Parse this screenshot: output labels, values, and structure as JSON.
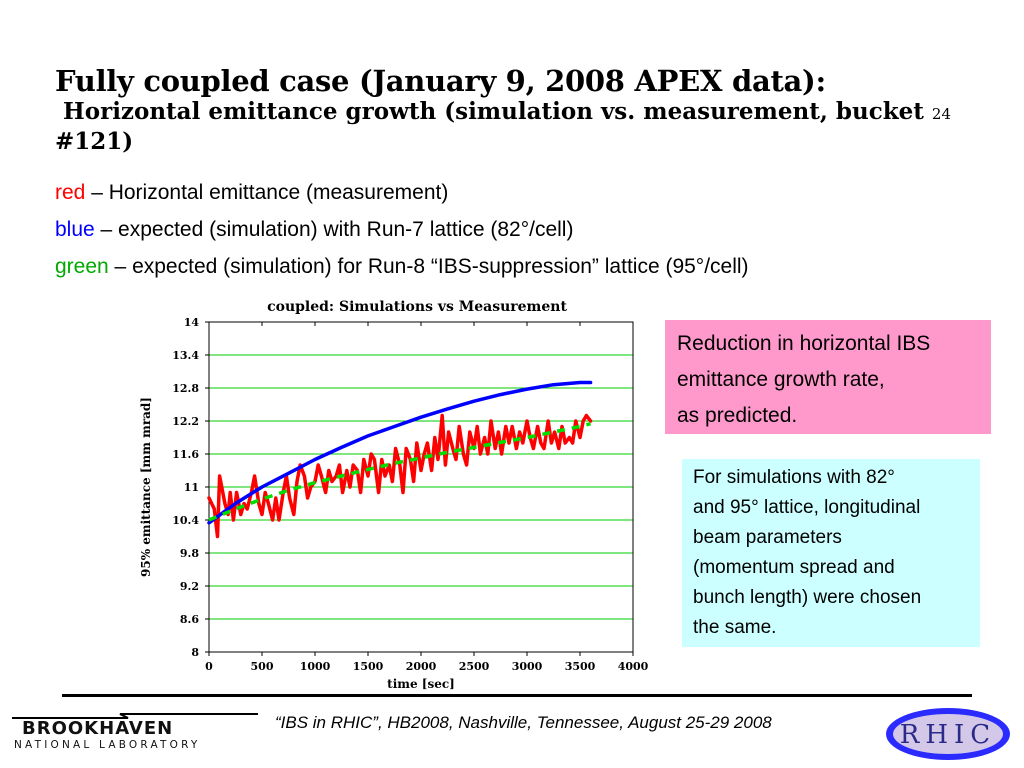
{
  "title": {
    "line1": "Fully coupled case (January 9, 2008 APEX data):",
    "line2": "Horizontal emittance growth (simulation vs. measurement, bucket",
    "page_number": "24",
    "line3": "#121)"
  },
  "legend_lines": [
    {
      "color_word": "red",
      "text": " – Horizontal emittance (measurement)",
      "color": "#ff0000"
    },
    {
      "color_word": "blue",
      "text": " – expected (simulation) with Run-7 lattice (82°/cell)",
      "color": "#0000ff"
    },
    {
      "color_word": "green",
      "text": " – expected (simulation) for Run-8 “IBS-suppression” lattice (95°/cell)",
      "color": "#00aa00"
    }
  ],
  "notes": {
    "pink_box": [
      "Reduction in horizontal IBS",
      "emittance growth rate,",
      "as predicted."
    ],
    "cyan_box": [
      "For simulations with 82°",
      "and 95° lattice, longitudinal",
      "beam parameters",
      "(momentum spread and",
      "bunch length) were chosen",
      "the same."
    ]
  },
  "footer": {
    "text": "“IBS in RHIC”, HB2008, Nashville, Tennessee, August 25-29  2008",
    "logo_left_top": "BROOKHAVEN",
    "logo_left_bottom": "NATIONAL LABORATORY",
    "logo_right": "RHIC"
  },
  "colors": {
    "measurement": "#ff0000",
    "run7_sim": "#0000ff",
    "run8_sim": "#00dd00",
    "gridlines": "#00cc00",
    "pink_box": "#ff99cc",
    "cyan_box": "#ccffff"
  },
  "chart_data": {
    "type": "line",
    "title": "coupled: Simulations vs Measurement",
    "xlabel": "time [sec]",
    "ylabel": "95% emittance [mm mrad]",
    "xlim": [
      0,
      4000
    ],
    "ylim": [
      8,
      14
    ],
    "xticks": [
      "0",
      "500",
      "1000",
      "1500",
      "2000",
      "2500",
      "3000",
      "3500",
      "4000"
    ],
    "yticks": [
      "8",
      "8.6",
      "9.2",
      "9.8",
      "10.4",
      "11",
      "11.6",
      "12.2",
      "12.8",
      "13.4",
      "14"
    ],
    "grid": "horizontal",
    "series": [
      {
        "name": "red",
        "style": "solid",
        "x": [
          0,
          50,
          80,
          100,
          150,
          180,
          200,
          230,
          260,
          300,
          330,
          360,
          400,
          430,
          470,
          500,
          530,
          560,
          600,
          630,
          660,
          700,
          730,
          760,
          800,
          830,
          860,
          900,
          930,
          960,
          1000,
          1030,
          1060,
          1100,
          1130,
          1160,
          1200,
          1230,
          1260,
          1300,
          1330,
          1360,
          1400,
          1430,
          1460,
          1500,
          1530,
          1560,
          1600,
          1630,
          1660,
          1700,
          1730,
          1760,
          1800,
          1830,
          1860,
          1900,
          1930,
          1960,
          2000,
          2030,
          2060,
          2100,
          2130,
          2160,
          2200,
          2230,
          2260,
          2300,
          2330,
          2360,
          2400,
          2430,
          2460,
          2500,
          2530,
          2560,
          2600,
          2630,
          2660,
          2700,
          2730,
          2760,
          2800,
          2830,
          2860,
          2900,
          2930,
          2960,
          3000,
          3030,
          3060,
          3100,
          3130,
          3160,
          3200,
          3230,
          3260,
          3300,
          3330,
          3360,
          3400,
          3430,
          3460,
          3500,
          3530,
          3560,
          3600
        ],
        "y": [
          10.8,
          10.6,
          10.1,
          11.2,
          10.7,
          10.5,
          10.9,
          10.4,
          10.9,
          10.5,
          10.7,
          10.6,
          10.9,
          11.2,
          10.7,
          10.5,
          10.9,
          10.7,
          10.4,
          10.8,
          10.4,
          10.9,
          11.2,
          10.8,
          10.5,
          11.1,
          11.4,
          11.2,
          10.8,
          11.0,
          11.1,
          11.4,
          11.2,
          10.9,
          11.3,
          11.1,
          11.2,
          11.4,
          10.9,
          11.3,
          11.0,
          11.4,
          11.3,
          10.9,
          11.5,
          11.2,
          11.6,
          11.5,
          10.9,
          11.5,
          11.2,
          11.4,
          11.1,
          11.7,
          11.4,
          10.9,
          11.7,
          11.5,
          11.1,
          11.8,
          11.3,
          11.6,
          11.8,
          11.3,
          11.9,
          11.5,
          12.3,
          11.4,
          12.0,
          11.7,
          11.5,
          12.1,
          11.6,
          11.4,
          12.0,
          11.7,
          12.1,
          11.6,
          11.9,
          11.6,
          12.2,
          11.7,
          12.0,
          11.6,
          12.1,
          11.8,
          12.1,
          11.7,
          12.0,
          11.8,
          12.2,
          11.9,
          11.7,
          12.1,
          11.8,
          11.7,
          12.2,
          11.8,
          12.0,
          11.7,
          12.1,
          11.8,
          11.9,
          11.8,
          12.2,
          11.9,
          12.2,
          12.3,
          12.2
        ],
        "color": "#ff0000"
      },
      {
        "name": "blue",
        "style": "solid",
        "x": [
          0,
          250,
          500,
          750,
          1000,
          1250,
          1500,
          1750,
          2000,
          2250,
          2500,
          2750,
          3000,
          3250,
          3500,
          3600
        ],
        "y": [
          10.35,
          10.7,
          11.0,
          11.25,
          11.5,
          11.72,
          11.93,
          12.1,
          12.27,
          12.42,
          12.56,
          12.68,
          12.78,
          12.86,
          12.9,
          12.9
        ],
        "color": "#0000ff"
      },
      {
        "name": "green",
        "style": "dashed",
        "x": [
          0,
          250,
          500,
          750,
          1000,
          1250,
          1500,
          1750,
          2000,
          2250,
          2500,
          2750,
          3000,
          3250,
          3500,
          3600
        ],
        "y": [
          10.4,
          10.6,
          10.78,
          10.94,
          11.08,
          11.2,
          11.32,
          11.43,
          11.53,
          11.63,
          11.72,
          11.81,
          11.9,
          12.0,
          12.1,
          12.15
        ],
        "color": "#00dd00"
      }
    ]
  }
}
